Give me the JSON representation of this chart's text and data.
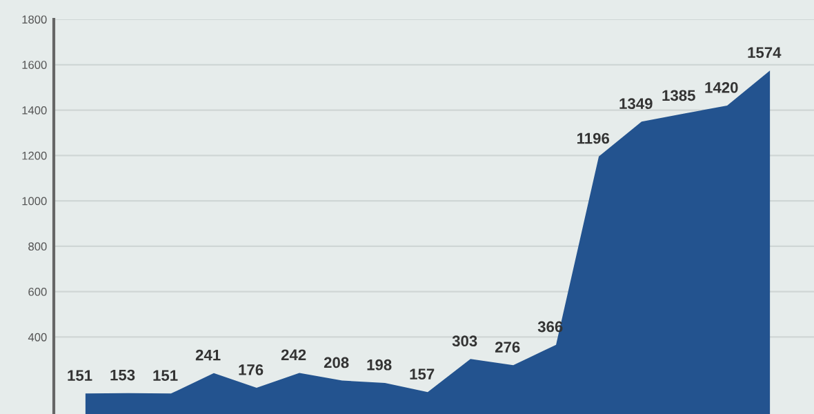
{
  "chart_data": {
    "type": "area",
    "categories": [
      null,
      null,
      null,
      null,
      null,
      null,
      null,
      null,
      null,
      null,
      null,
      null,
      null,
      null,
      null,
      null,
      null
    ],
    "series": [
      {
        "color": "#23538f",
        "values": [
          151,
          153,
          151,
          241,
          176,
          242,
          208,
          198,
          157,
          303,
          276,
          366,
          1196,
          1349,
          1385,
          1420,
          1574
        ]
      }
    ],
    "ylim": [
      0,
      1800
    ],
    "yticks": [
      400,
      600,
      800,
      1000,
      1200,
      1400,
      1600,
      1800
    ],
    "grid": "y",
    "data_labels": true,
    "tick_labels": "y"
  }
}
